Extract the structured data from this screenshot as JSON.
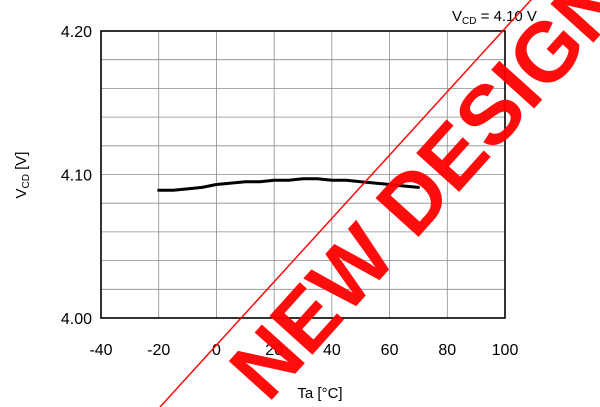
{
  "chart_data": {
    "type": "line",
    "condition": {
      "prefix": "V",
      "subscript": "CD",
      "rest": " = 4.10 V"
    },
    "ylabel": {
      "prefix": "V",
      "subscript": "CD",
      "rest": " [V]"
    },
    "xlabel": "Ta [°C]",
    "xlim": [
      -40,
      100
    ],
    "ylim": [
      4.0,
      4.2
    ],
    "x_ticks": [
      -40,
      -20,
      0,
      20,
      40,
      60,
      80,
      100
    ],
    "x_tick_labels": [
      "-40",
      "-20",
      "0",
      "20",
      "40",
      "60",
      "80",
      "100"
    ],
    "y_ticks": [
      4.0,
      4.1,
      4.2
    ],
    "y_tick_labels": [
      "4.00",
      "4.10",
      "4.20"
    ],
    "grid": true,
    "series": [
      {
        "color": "#000000",
        "x": [
          -20,
          -15,
          -10,
          -5,
          0,
          5,
          10,
          15,
          20,
          25,
          30,
          35,
          40,
          45,
          50,
          55,
          60,
          65,
          70
        ],
        "y": [
          4.089,
          4.089,
          4.09,
          4.091,
          4.093,
          4.094,
          4.095,
          4.095,
          4.096,
          4.096,
          4.097,
          4.097,
          4.096,
          4.096,
          4.095,
          4.094,
          4.093,
          4.092,
          4.091
        ]
      }
    ]
  },
  "watermark": {
    "text": "NEW DESIGN",
    "color": "#ff0000"
  }
}
